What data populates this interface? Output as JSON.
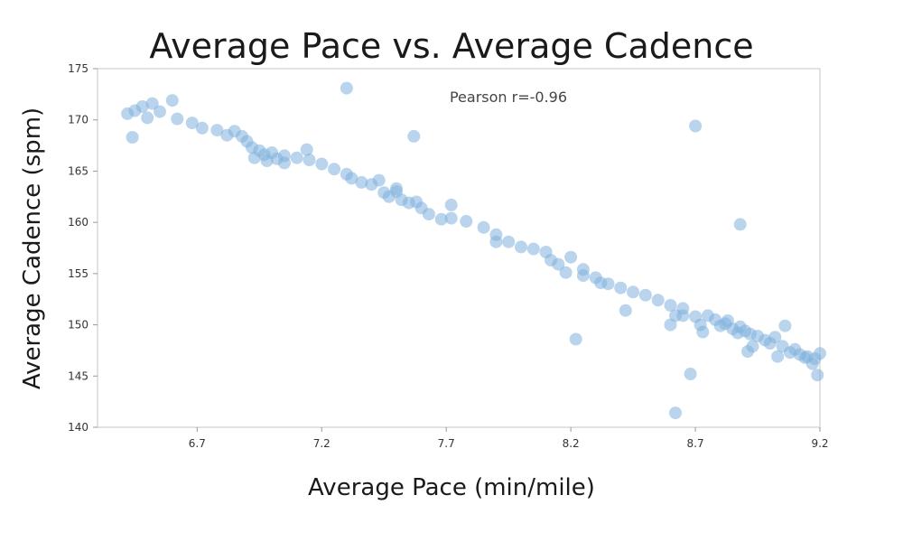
{
  "chart_data": {
    "type": "scatter",
    "title": "Average Pace vs. Average Cadence",
    "xlabel": "Average Pace (min/mile)",
    "ylabel": "Average Cadence (spm)",
    "annotation": "Pearson r=-0.96",
    "xlim": [
      6.3,
      9.2
    ],
    "ylim": [
      140,
      175
    ],
    "xticks": [
      6.7,
      7.2,
      7.7,
      8.2,
      8.7,
      9.2
    ],
    "xtick_labels": [
      "6.7",
      "7.2",
      "7.7",
      "8.2",
      "8.7",
      "9.2"
    ],
    "yticks": [
      140,
      145,
      150,
      155,
      160,
      165,
      170,
      175
    ],
    "ytick_labels": [
      "140",
      "145",
      "150",
      "155",
      "160",
      "165",
      "170",
      "175"
    ],
    "grid": false,
    "marker_color": "#7fb0dc",
    "points": [
      [
        6.42,
        170.6
      ],
      [
        6.45,
        170.9
      ],
      [
        6.48,
        171.3
      ],
      [
        6.5,
        170.2
      ],
      [
        6.52,
        171.6
      ],
      [
        6.55,
        170.8
      ],
      [
        6.6,
        171.9
      ],
      [
        6.44,
        168.3
      ],
      [
        6.62,
        170.1
      ],
      [
        6.68,
        169.7
      ],
      [
        6.72,
        169.2
      ],
      [
        6.78,
        169.0
      ],
      [
        6.82,
        168.5
      ],
      [
        6.85,
        168.9
      ],
      [
        6.88,
        168.4
      ],
      [
        6.9,
        167.9
      ],
      [
        6.92,
        167.3
      ],
      [
        6.93,
        166.3
      ],
      [
        6.95,
        167.0
      ],
      [
        6.97,
        166.6
      ],
      [
        7.0,
        166.8
      ],
      [
        7.02,
        166.2
      ],
      [
        7.05,
        166.5
      ],
      [
        7.1,
        166.3
      ],
      [
        7.15,
        166.1
      ],
      [
        7.2,
        165.7
      ],
      [
        7.25,
        165.2
      ],
      [
        7.3,
        164.7
      ],
      [
        7.32,
        164.3
      ],
      [
        7.36,
        163.9
      ],
      [
        7.4,
        163.7
      ],
      [
        7.43,
        164.1
      ],
      [
        7.45,
        162.9
      ],
      [
        7.47,
        162.5
      ],
      [
        7.5,
        163.3
      ],
      [
        7.52,
        162.2
      ],
      [
        7.55,
        161.9
      ],
      [
        7.58,
        162.0
      ],
      [
        7.6,
        161.4
      ],
      [
        7.63,
        160.8
      ],
      [
        7.68,
        160.3
      ],
      [
        7.72,
        160.4
      ],
      [
        7.78,
        160.1
      ],
      [
        7.85,
        159.5
      ],
      [
        7.9,
        158.8
      ],
      [
        7.95,
        158.1
      ],
      [
        8.0,
        157.6
      ],
      [
        8.05,
        157.4
      ],
      [
        8.1,
        157.1
      ],
      [
        8.12,
        156.3
      ],
      [
        8.15,
        155.9
      ],
      [
        8.18,
        155.1
      ],
      [
        8.2,
        156.6
      ],
      [
        8.25,
        155.4
      ],
      [
        8.3,
        154.6
      ],
      [
        8.35,
        154.0
      ],
      [
        8.4,
        153.6
      ],
      [
        8.45,
        153.2
      ],
      [
        8.5,
        152.9
      ],
      [
        8.55,
        152.4
      ],
      [
        8.6,
        151.9
      ],
      [
        8.62,
        150.9
      ],
      [
        8.65,
        151.6
      ],
      [
        8.7,
        150.8
      ],
      [
        8.72,
        150.0
      ],
      [
        8.75,
        150.9
      ],
      [
        8.78,
        150.5
      ],
      [
        8.8,
        149.9
      ],
      [
        8.82,
        150.1
      ],
      [
        8.85,
        149.6
      ],
      [
        8.88,
        149.8
      ],
      [
        8.9,
        149.4
      ],
      [
        8.92,
        149.1
      ],
      [
        8.95,
        148.9
      ],
      [
        8.98,
        148.5
      ],
      [
        9.0,
        148.2
      ],
      [
        9.02,
        148.8
      ],
      [
        9.05,
        147.9
      ],
      [
        9.08,
        147.3
      ],
      [
        9.1,
        147.6
      ],
      [
        9.12,
        147.1
      ],
      [
        9.15,
        146.9
      ],
      [
        9.18,
        146.7
      ],
      [
        9.19,
        145.1
      ],
      [
        9.2,
        147.2
      ],
      [
        9.17,
        146.2
      ],
      [
        8.91,
        147.4
      ],
      [
        8.93,
        147.9
      ],
      [
        9.06,
        149.9
      ],
      [
        8.73,
        149.3
      ],
      [
        7.57,
        168.4
      ],
      [
        7.14,
        167.1
      ],
      [
        7.3,
        173.1
      ],
      [
        7.72,
        161.7
      ],
      [
        7.9,
        158.1
      ],
      [
        8.22,
        148.6
      ],
      [
        8.42,
        151.4
      ],
      [
        8.6,
        150.0
      ],
      [
        8.62,
        141.4
      ],
      [
        8.68,
        145.2
      ],
      [
        8.7,
        169.4
      ],
      [
        8.88,
        159.8
      ],
      [
        8.65,
        150.9
      ],
      [
        8.83,
        150.4
      ],
      [
        8.87,
        149.2
      ],
      [
        9.03,
        146.9
      ],
      [
        9.14,
        146.8
      ],
      [
        7.05,
        165.8
      ],
      [
        6.98,
        166.0
      ],
      [
        7.5,
        163.0
      ],
      [
        8.32,
        154.1
      ],
      [
        8.25,
        154.8
      ]
    ]
  }
}
